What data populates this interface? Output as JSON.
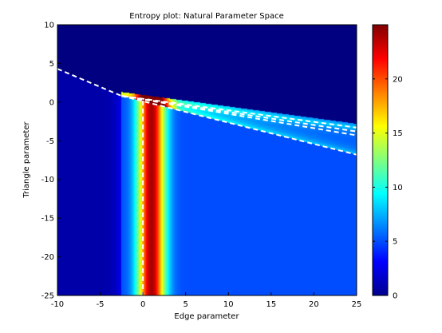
{
  "chart_data": {
    "type": "heatmap",
    "title": "Entropy plot: Natural Parameter Space",
    "xlabel": "Edge parameter",
    "ylabel": "Triangle parameter",
    "xlim": [
      -10,
      25
    ],
    "ylim": [
      -25,
      10
    ],
    "x_ticks": [
      "-10",
      "-5",
      "0",
      "5",
      "10",
      "15",
      "20",
      "25"
    ],
    "y_ticks": [
      "10",
      "5",
      "0",
      "-5",
      "-10",
      "-15",
      "-20",
      "-25"
    ],
    "colorbar": {
      "range": [
        0,
        25
      ],
      "ticks": [
        "0",
        "5",
        "10",
        "15",
        "20"
      ],
      "colormap": "jet"
    },
    "field_notes": {
      "background_low_value": 0,
      "lower_region_value": 5,
      "vertical_band_center_x": 1,
      "vertical_band_peak": 22,
      "apex": [
        -2.5,
        0.8
      ]
    },
    "overlay_lines": [
      {
        "style": "dashed",
        "color": "#ffffff",
        "points": [
          [
            -10,
            4.3
          ],
          [
            -2.5,
            0.8
          ],
          [
            25,
            -3.3
          ]
        ]
      },
      {
        "style": "dashed",
        "color": "#ffffff",
        "points": [
          [
            -2.5,
            0.8
          ],
          [
            25,
            -3.8
          ]
        ]
      },
      {
        "style": "dashed",
        "color": "#ffffff",
        "points": [
          [
            -2.5,
            0.8
          ],
          [
            25,
            -4.3
          ]
        ]
      },
      {
        "style": "dashed",
        "color": "#ffffff",
        "points": [
          [
            -2.5,
            0.8
          ],
          [
            25,
            -6.8
          ]
        ]
      },
      {
        "style": "dashed",
        "color": "#ffffff",
        "points": [
          [
            0,
            0.2
          ],
          [
            0,
            -25
          ]
        ]
      }
    ]
  }
}
